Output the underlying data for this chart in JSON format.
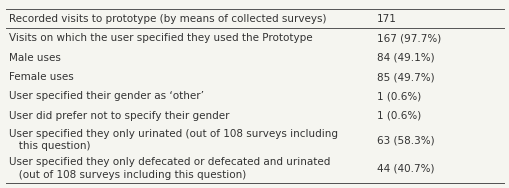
{
  "rows": [
    {
      "label": "Recorded visits to prototype (by means of collected surveys)",
      "value": "171",
      "bold_label": false,
      "top_border": true,
      "bottom_border": true,
      "indent": false,
      "wrap_label": false
    },
    {
      "label": "Visits on which the user specified they used the Prototype",
      "value": "167 (97.7%)",
      "bold_label": false,
      "top_border": false,
      "bottom_border": false,
      "indent": false,
      "wrap_label": false
    },
    {
      "label": "Male uses",
      "value": "84 (49.1%)",
      "bold_label": false,
      "top_border": false,
      "bottom_border": false,
      "indent": false,
      "wrap_label": false
    },
    {
      "label": "Female uses",
      "value": "85 (49.7%)",
      "bold_label": false,
      "top_border": false,
      "bottom_border": false,
      "indent": false,
      "wrap_label": false
    },
    {
      "label": "User specified their gender as ‘other’",
      "value": "1 (0.6%)",
      "bold_label": false,
      "top_border": false,
      "bottom_border": false,
      "indent": false,
      "wrap_label": false
    },
    {
      "label": "User did prefer not to specify their gender",
      "value": "1 (0.6%)",
      "bold_label": false,
      "top_border": false,
      "bottom_border": false,
      "indent": false,
      "wrap_label": false
    },
    {
      "label": "User specified they only urinated (out of 108 surveys including\n   this question)",
      "value": "63 (58.3%)",
      "bold_label": false,
      "top_border": false,
      "bottom_border": false,
      "indent": false,
      "wrap_label": true
    },
    {
      "label": "User specified they only defecated or defecated and urinated\n   (out of 108 surveys including this question)",
      "value": "44 (40.7%)",
      "bold_label": false,
      "top_border": false,
      "bottom_border": true,
      "indent": false,
      "wrap_label": true
    }
  ],
  "col_split": 0.73,
  "bg_color": "#f5f5f0",
  "border_color": "#555555",
  "text_color": "#333333",
  "font_size": 7.5,
  "fig_width": 5.1,
  "fig_height": 1.88
}
